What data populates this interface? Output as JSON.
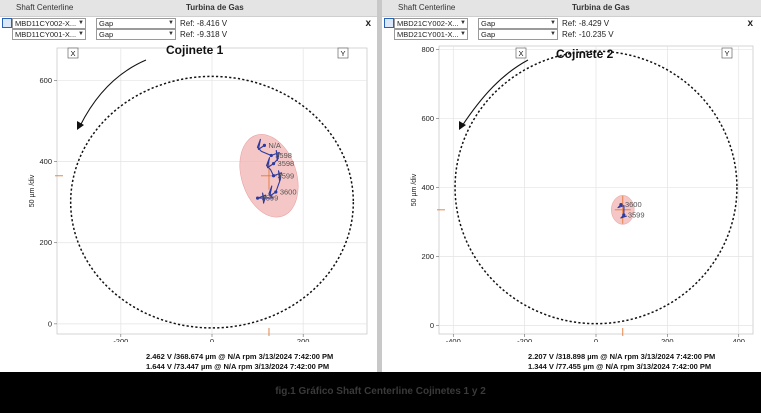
{
  "panels": [
    {
      "window_title": "Shaft Centerline",
      "subtitle": "Turbina de Gas",
      "close": "x",
      "channels": [
        {
          "name": "MBD11CY002-X...",
          "mode": "Gap",
          "ref": "Ref:  -8.416 V"
        },
        {
          "name": "MBD11CY001-X...",
          "mode": "Gap",
          "ref": "Ref:  -9.318 V"
        }
      ],
      "label": "Cojinete 1",
      "x_button": "X",
      "y_button": "Y",
      "ylabel": "50 µm /div",
      "footer": [
        "2.462 V /368.674 µm @ N/A rpm 3/13/2024 7:42:00 PM",
        "1.644 V /73.447 µm @ N/A rpm 3/13/2024 7:42:00 PM"
      ],
      "annotations": [
        "N/A",
        "3598",
        "3598",
        "3599",
        "3600",
        "3599"
      ]
    },
    {
      "window_title": "Shaft Centerline",
      "subtitle": "Turbina de Gas",
      "close": "x",
      "channels": [
        {
          "name": "MBD21CY002-X...",
          "mode": "Gap",
          "ref": "Ref:  -8.429 V"
        },
        {
          "name": "MBD21CY001-X...",
          "mode": "Gap",
          "ref": "Ref:  -10.235 V"
        }
      ],
      "label": "Cojinete 2",
      "x_button": "X",
      "y_button": "Y",
      "ylabel": "50 µm /div",
      "footer": [
        "2.207 V /318.898 µm @ N/A rpm 3/13/2024 7:42:00 PM",
        "1.344 V /77.455 µm @ N/A rpm 3/13/2024 7:42:00 PM"
      ],
      "annotations": [
        "3600",
        "3599"
      ]
    }
  ],
  "caption": "fig.1 Gráfico Shaft Centerline Cojinetes 1 y 2",
  "chart_data": [
    {
      "type": "scatter",
      "title": "Cojinete 1",
      "ylabel": "50 µm /div",
      "x_ticks": [
        -200,
        0,
        200
      ],
      "y_ticks": [
        0,
        200,
        400,
        600
      ],
      "xlim": [
        -340,
        340
      ],
      "ylim": [
        -25,
        680
      ],
      "clearance_circle": {
        "cx": 0,
        "cy": 300,
        "r": 310
      },
      "cluster_center": [
        125,
        365
      ],
      "cluster_ellipse": {
        "rx": 60,
        "ry": 105,
        "rotation": -18
      },
      "grid": true,
      "colors": {
        "cluster": "#f2b3b3",
        "trace": "#2d3a9e",
        "circle": "#111111",
        "marker": "#e07a3a"
      },
      "points": [
        {
          "x": 115,
          "y": 440,
          "label": "N/A"
        },
        {
          "x": 130,
          "y": 415,
          "label": "3598"
        },
        {
          "x": 135,
          "y": 395,
          "label": "3598"
        },
        {
          "x": 135,
          "y": 365,
          "label": "3599"
        },
        {
          "x": 140,
          "y": 325,
          "label": "3600"
        },
        {
          "x": 100,
          "y": 310,
          "label": "3599"
        }
      ]
    },
    {
      "type": "scatter",
      "title": "Cojinete 2",
      "ylabel": "50 µm /div",
      "x_ticks": [
        -400,
        -200,
        0,
        200,
        400
      ],
      "y_ticks": [
        0,
        200,
        400,
        600,
        800
      ],
      "xlim": [
        -440,
        440
      ],
      "ylim": [
        -25,
        810
      ],
      "clearance_circle": {
        "cx": 0,
        "cy": 400,
        "r": 395
      },
      "cluster_center": [
        75,
        335
      ],
      "cluster_ellipse": {
        "rx": 32,
        "ry": 42,
        "rotation": 0
      },
      "grid": true,
      "colors": {
        "cluster": "#f2b3b3",
        "trace": "#2d3a9e",
        "circle": "#111111",
        "marker": "#e07a3a"
      },
      "points": [
        {
          "x": 70,
          "y": 350,
          "label": "3600"
        },
        {
          "x": 78,
          "y": 320,
          "label": "3599"
        }
      ]
    }
  ]
}
